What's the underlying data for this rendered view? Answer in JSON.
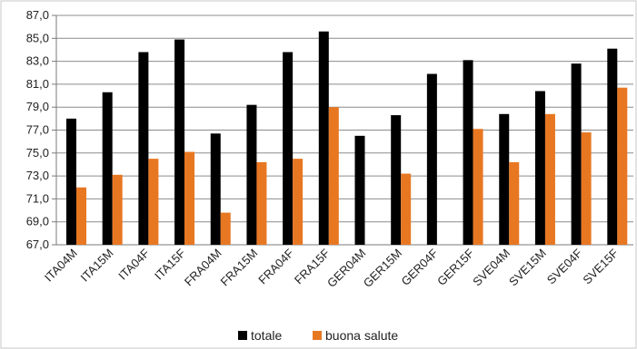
{
  "chart_data": {
    "type": "bar",
    "categories": [
      "ITA04M",
      "ITA15M",
      "ITA04F",
      "ITA15F",
      "FRA04M",
      "FRA15M",
      "FRA04F",
      "FRA15F",
      "GER04M",
      "GER15M",
      "GER04F",
      "GER15F",
      "SVE04M",
      "SVE15M",
      "SVE04F",
      "SVE15F"
    ],
    "series": [
      {
        "name": "totale",
        "color": "#000000",
        "values": [
          78.0,
          80.3,
          83.8,
          84.9,
          76.7,
          79.2,
          83.8,
          85.6,
          76.5,
          78.3,
          81.9,
          83.1,
          78.4,
          80.4,
          82.8,
          84.1
        ]
      },
      {
        "name": "buona salute",
        "color": "#e87722",
        "values": [
          72.0,
          73.1,
          74.5,
          75.1,
          69.8,
          74.2,
          74.5,
          79.0,
          null,
          73.2,
          null,
          77.1,
          74.2,
          78.4,
          76.8,
          80.7
        ]
      }
    ],
    "ylim": [
      67.0,
      87.0
    ],
    "yticks": [
      "67,0",
      "69,0",
      "71,0",
      "73,0",
      "75,0",
      "77,0",
      "79,0",
      "81,0",
      "83,0",
      "85,0",
      "87,0"
    ],
    "grid": true,
    "legend_position": "bottom",
    "title": "",
    "xlabel": "",
    "ylabel": ""
  }
}
